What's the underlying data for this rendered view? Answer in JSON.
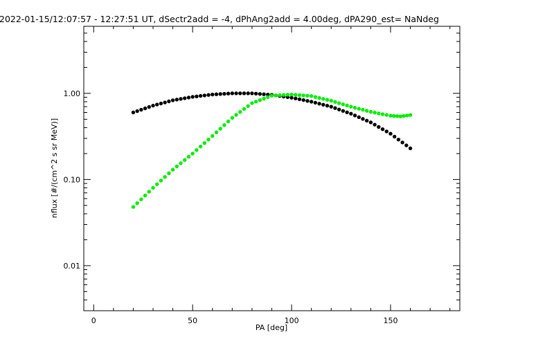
{
  "chart_data": {
    "type": "scatter",
    "title": "2022-01-15/12:07:57 - 12:27:51 UT, dSectr2add = -4, dPhAng2add = 4.00deg, dPA290_est=   NaNdeg",
    "xlabel": "PA [deg]",
    "ylabel": "nflux [#/(cm^2 s sr MeV)]",
    "xlim": [
      -5,
      185
    ],
    "ylim": [
      0.003,
      6
    ],
    "y_scale": "log",
    "x_ticks": [
      0,
      50,
      100,
      150
    ],
    "x_tick_labels": [
      "0",
      "50",
      "100",
      "150"
    ],
    "y_ticks": [
      0.01,
      0.1,
      1
    ],
    "y_tick_labels": [
      "0.01",
      "0.10",
      "1.00"
    ],
    "grid": false,
    "series": [
      {
        "color": "#000000",
        "x": [
          20,
          30,
          40,
          50,
          60,
          70,
          80,
          90,
          100,
          110,
          120,
          130,
          140,
          150,
          160
        ],
        "y": [
          0.6,
          0.72,
          0.83,
          0.91,
          0.97,
          1.0,
          1.0,
          0.96,
          0.89,
          0.8,
          0.7,
          0.58,
          0.46,
          0.34,
          0.23
        ]
      },
      {
        "color": "#00ee00",
        "x": [
          20,
          30,
          40,
          50,
          60,
          70,
          80,
          90,
          100,
          110,
          120,
          130,
          140,
          150,
          155,
          160
        ],
        "y": [
          0.048,
          0.08,
          0.13,
          0.2,
          0.32,
          0.52,
          0.77,
          0.94,
          0.97,
          0.93,
          0.82,
          0.7,
          0.61,
          0.55,
          0.54,
          0.56
        ]
      }
    ]
  }
}
